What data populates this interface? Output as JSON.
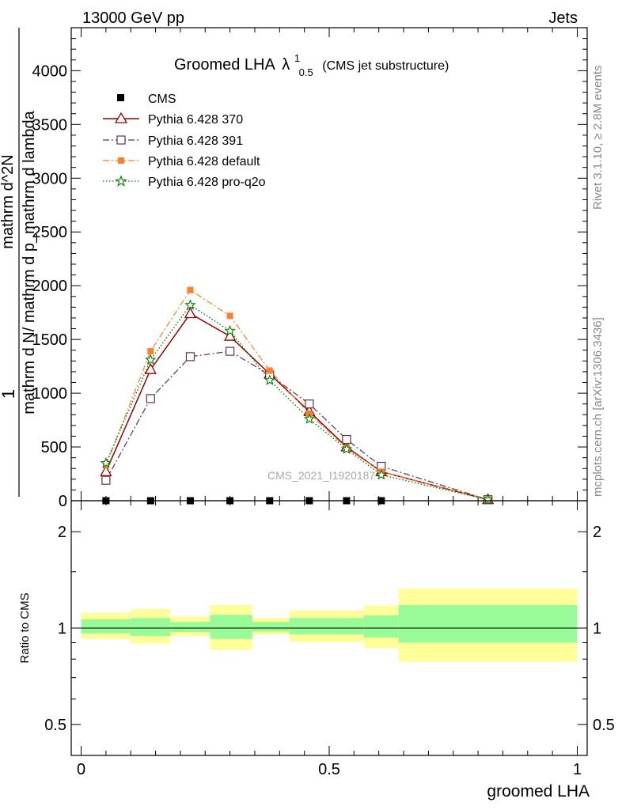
{
  "header": {
    "left": "13000 GeV pp",
    "right": "Jets"
  },
  "side_labels": {
    "rivet": "Rivet 3.1.10, ≥ 2.8M events",
    "mcplots": "mcplots.cern.ch [arXiv:1306.3436]"
  },
  "watermark": "CMS_2021_I1920187",
  "title": {
    "main": "Groomed LHA",
    "lambda": "λ",
    "sup": "1",
    "sub": "0.5",
    "paren": "(CMS jet substructure)"
  },
  "colors": {
    "cms": "#000000",
    "p370": "#990000",
    "p391": "#663344",
    "pdefault": "#ff7f2a",
    "pq2o": "#008000",
    "band_inner": "#98fb98",
    "band_outer": "#ffff99"
  },
  "chart_data": [
    {
      "type": "line",
      "ylabel": "mathrm d N/ mathrm d p_mathrm d lambda",
      "ylabel_prefix": "1",
      "ylabel_top": "mathrm d^2N",
      "ylim": [
        0,
        4400
      ],
      "yticks": [
        0,
        500,
        1000,
        1500,
        2000,
        2500,
        3000,
        3500,
        4000
      ],
      "ytick_labels": [
        "0",
        "500",
        "1000",
        "1500",
        "2000",
        "2500",
        "3000",
        "3500",
        "4000"
      ],
      "xlim": [
        -0.02,
        1.02
      ],
      "legend_position": "top-left",
      "series": [
        {
          "name": "CMS",
          "marker": "square-filled",
          "style": "none",
          "x": [
            0.05,
            0.14,
            0.22,
            0.3,
            0.38,
            0.46,
            0.535,
            0.605
          ],
          "y": [
            0,
            0,
            0,
            0,
            0,
            0,
            0,
            0
          ]
        },
        {
          "name": "Pythia 6.428 370",
          "marker": "triangle-open",
          "style": "solid",
          "x": [
            0.05,
            0.14,
            0.22,
            0.3,
            0.38,
            0.46,
            0.535,
            0.605,
            0.82
          ],
          "y": [
            270,
            1220,
            1740,
            1530,
            1180,
            830,
            500,
            270,
            10
          ]
        },
        {
          "name": "Pythia 6.428 391",
          "marker": "square-open",
          "style": "dashdot",
          "x": [
            0.05,
            0.14,
            0.22,
            0.3,
            0.38,
            0.46,
            0.535,
            0.605,
            0.82
          ],
          "y": [
            190,
            950,
            1340,
            1390,
            1170,
            900,
            570,
            320,
            10
          ]
        },
        {
          "name": "Pythia 6.428 default",
          "marker": "square-filled-small",
          "style": "dashdot",
          "x": [
            0.05,
            0.14,
            0.22,
            0.3,
            0.38,
            0.46,
            0.535,
            0.605,
            0.82
          ],
          "y": [
            330,
            1390,
            1960,
            1720,
            1210,
            810,
            490,
            270,
            10
          ]
        },
        {
          "name": "Pythia 6.428 pro-q2o",
          "marker": "star",
          "style": "dotted",
          "x": [
            0.05,
            0.14,
            0.22,
            0.3,
            0.38,
            0.46,
            0.535,
            0.605,
            0.82
          ],
          "y": [
            350,
            1310,
            1820,
            1580,
            1120,
            760,
            480,
            240,
            10
          ]
        }
      ]
    },
    {
      "type": "area",
      "ylabel": "Ratio to CMS",
      "xlabel": "groomed LHA",
      "ylim": [
        0.4,
        2.5
      ],
      "yscale": "log",
      "yticks": [
        0.5,
        1,
        2
      ],
      "ytick_labels": [
        "0.5",
        "1",
        "2"
      ],
      "xlim": [
        -0.02,
        1.02
      ],
      "xticks": [
        0,
        0.5,
        1
      ],
      "xtick_labels": [
        "0",
        "0.5",
        "1"
      ],
      "reference_line": 1,
      "bins": [
        {
          "x0": 0.0,
          "x1": 0.1,
          "inner": [
            0.962,
            1.065
          ],
          "outer": [
            0.925,
            1.115
          ]
        },
        {
          "x0": 0.1,
          "x1": 0.18,
          "inner": [
            0.945,
            1.075
          ],
          "outer": [
            0.895,
            1.145
          ]
        },
        {
          "x0": 0.18,
          "x1": 0.26,
          "inner": [
            0.972,
            1.045
          ],
          "outer": [
            0.945,
            1.085
          ]
        },
        {
          "x0": 0.26,
          "x1": 0.345,
          "inner": [
            0.925,
            1.1
          ],
          "outer": [
            0.855,
            1.18
          ]
        },
        {
          "x0": 0.345,
          "x1": 0.42,
          "inner": [
            0.975,
            1.045
          ],
          "outer": [
            0.955,
            1.075
          ]
        },
        {
          "x0": 0.42,
          "x1": 0.57,
          "inner": [
            0.955,
            1.075
          ],
          "outer": [
            0.905,
            1.135
          ]
        },
        {
          "x0": 0.57,
          "x1": 0.64,
          "inner": [
            0.935,
            1.095
          ],
          "outer": [
            0.865,
            1.175
          ]
        },
        {
          "x0": 0.64,
          "x1": 1.0,
          "inner": [
            0.9,
            1.18
          ],
          "outer": [
            0.785,
            1.33
          ]
        }
      ]
    }
  ]
}
